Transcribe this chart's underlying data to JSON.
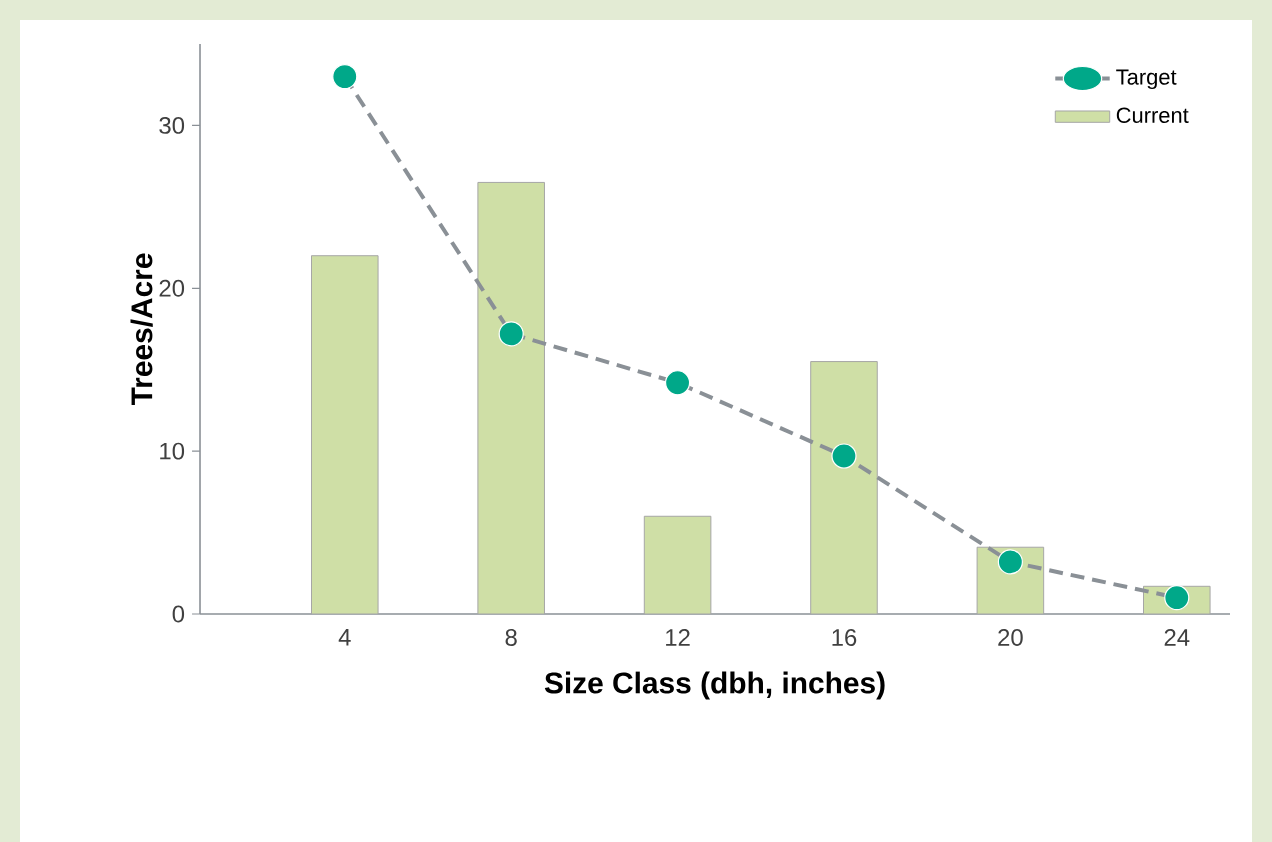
{
  "chart_data": {
    "type": "bar",
    "xlabel": "Size Class (dbh, inches)",
    "ylabel": "Trees/Acre",
    "categories": [
      "4",
      "8",
      "12",
      "16",
      "20",
      "24"
    ],
    "series": [
      {
        "name": "Target",
        "type": "line",
        "color": "#00a889",
        "marker": "circle",
        "line_style": "dashed",
        "values": [
          33,
          17.2,
          14.2,
          9.7,
          3.2,
          1.0
        ]
      },
      {
        "name": "Current",
        "color": "#cfdfa6",
        "values": [
          22,
          26.5,
          6.0,
          15.5,
          4.1,
          1.7
        ]
      }
    ],
    "ylim": [
      0,
      35
    ],
    "yticks": [
      0,
      10,
      20,
      30
    ],
    "grid": false,
    "legend": "top right"
  }
}
